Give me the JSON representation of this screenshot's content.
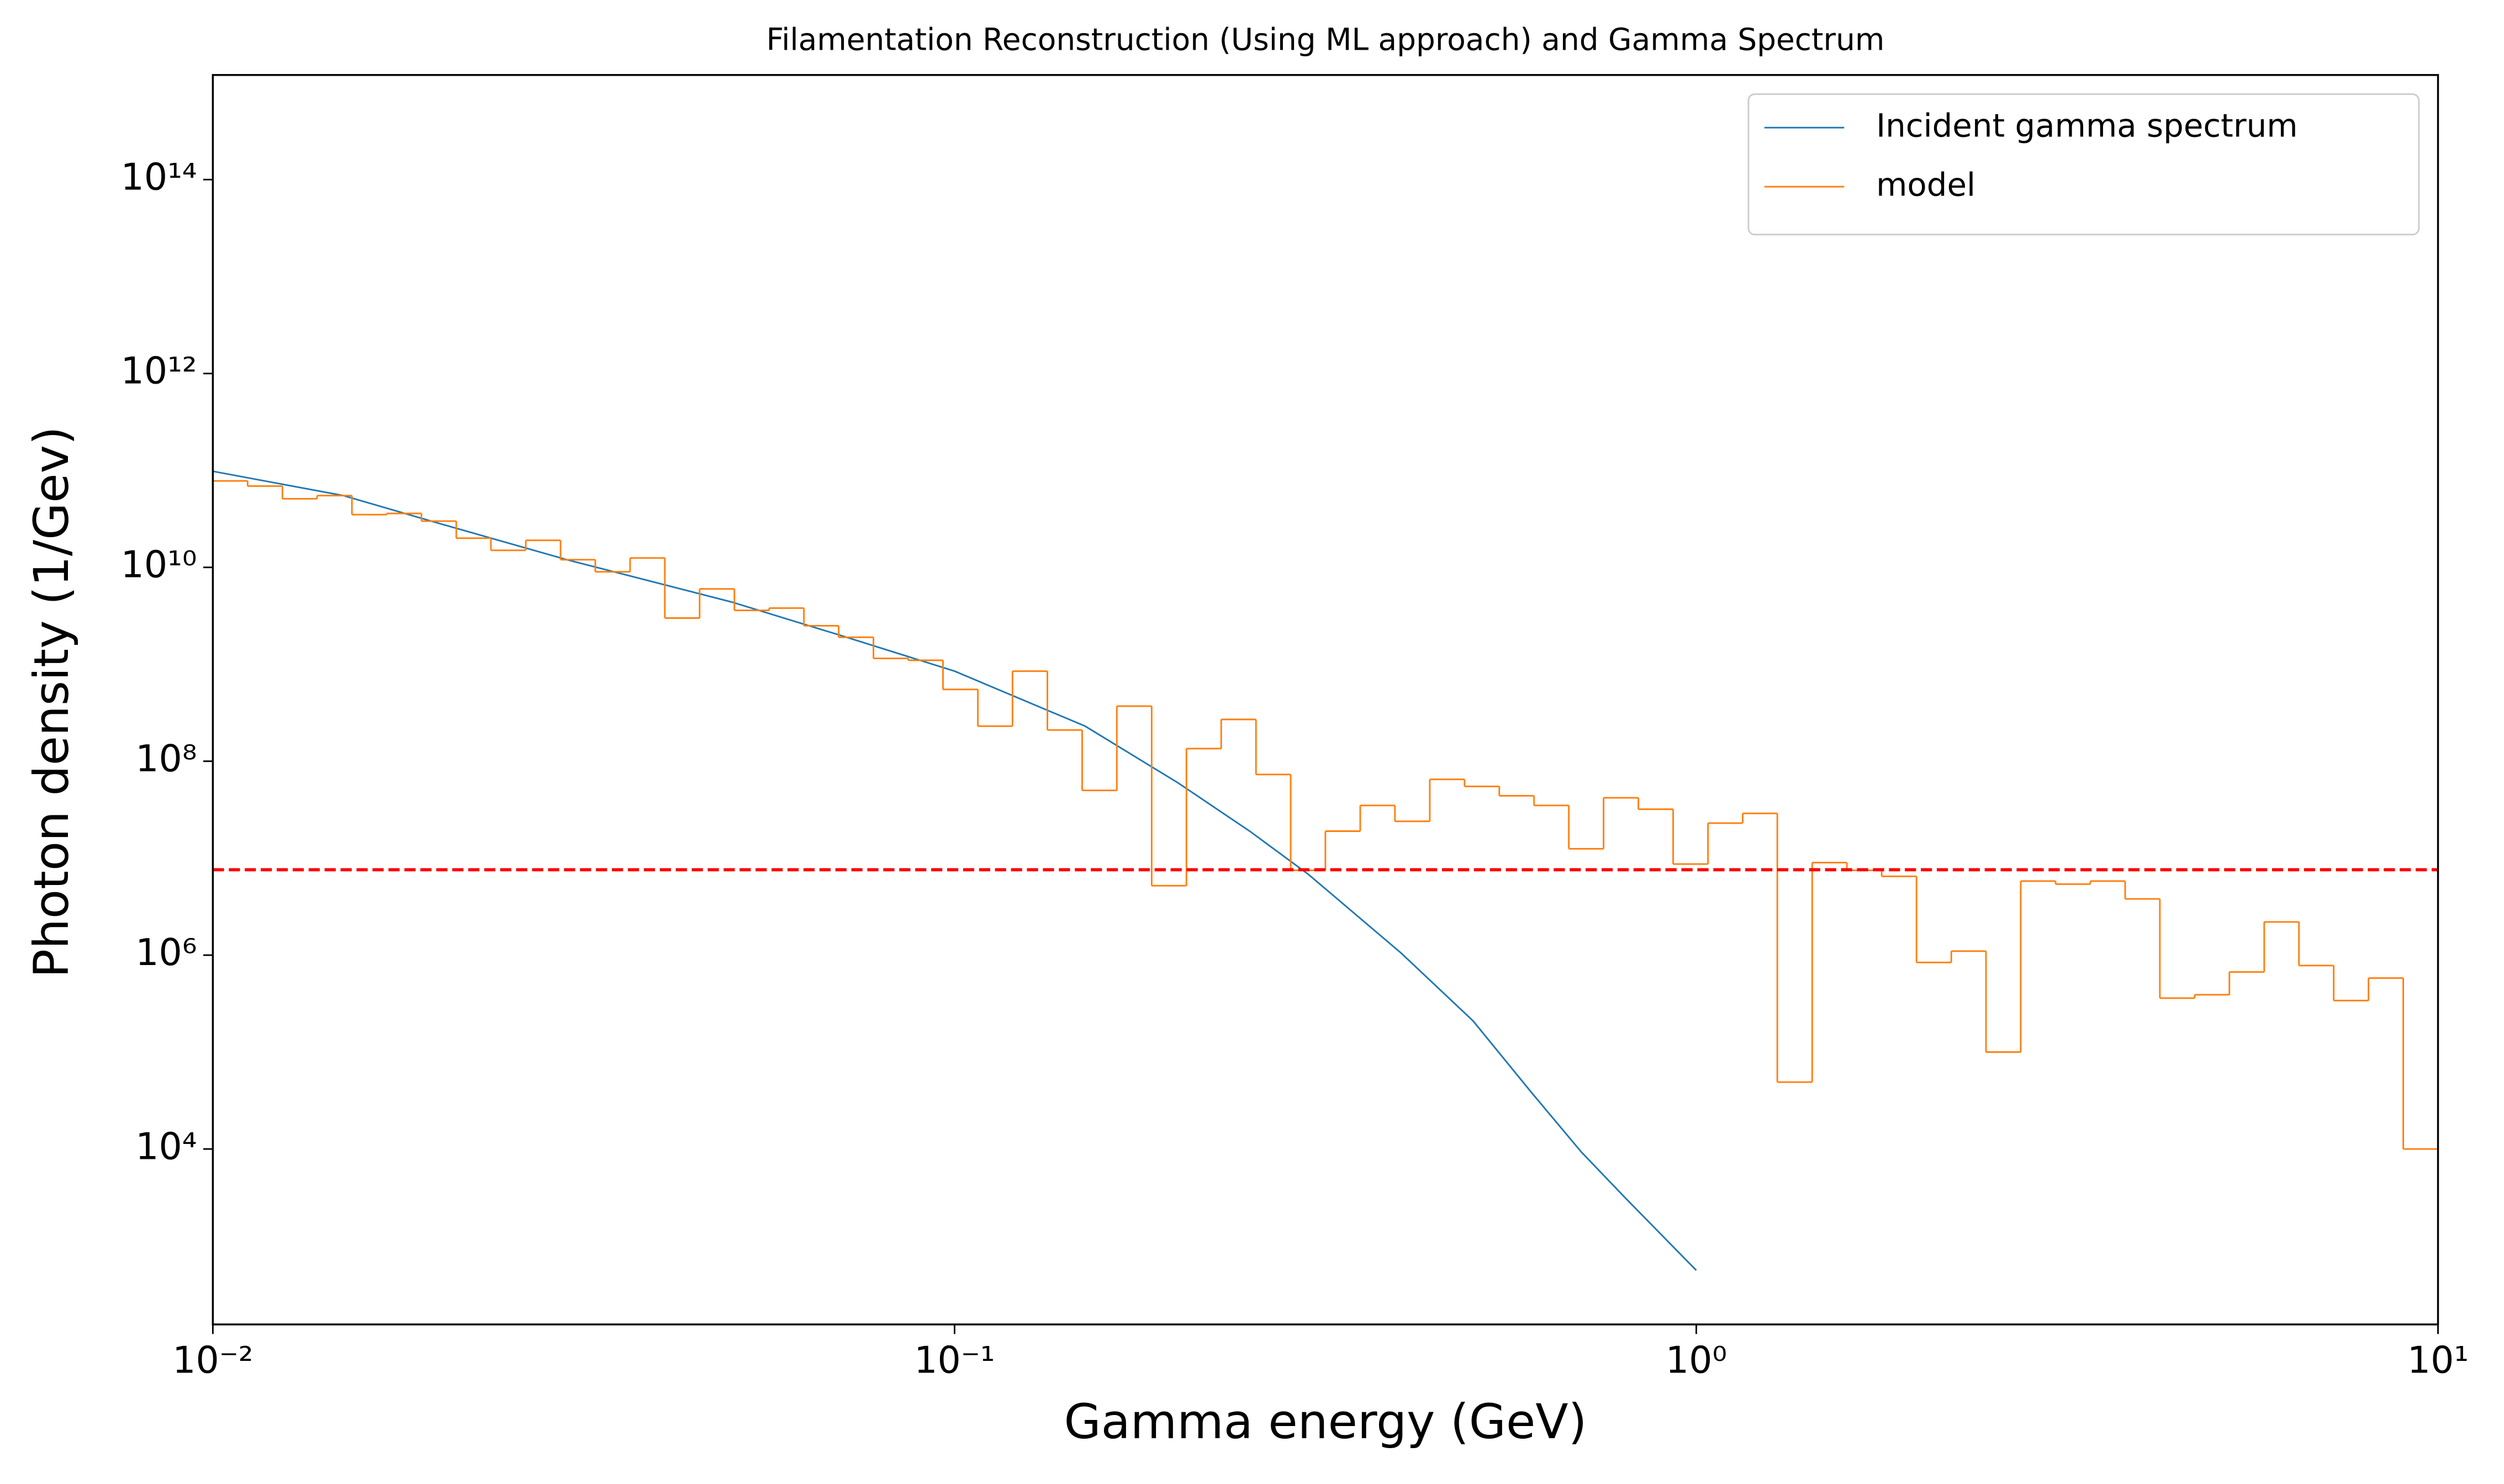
{
  "chart_data": {
    "type": "line",
    "title": "Filamentation Reconstruction (Using ML approach) and Gamma Spectrum",
    "xlabel": "Gamma energy (GeV)",
    "ylabel": "Photon density (1/Gev)",
    "xscale": "log",
    "yscale": "log",
    "xlim": [
      0.01,
      10
    ],
    "ylim": [
      155,
      1200000000000000.0
    ],
    "xticks": [
      {
        "value": 0.01,
        "label": "10⁻²"
      },
      {
        "value": 0.1,
        "label": "10⁻¹"
      },
      {
        "value": 1,
        "label": "10⁰"
      },
      {
        "value": 10,
        "label": "10¹"
      }
    ],
    "yticks": [
      {
        "value": 10000,
        "label": "10⁴"
      },
      {
        "value": 1000000,
        "label": "10⁶"
      },
      {
        "value": 100000000,
        "label": "10⁸"
      },
      {
        "value": 10000000000,
        "label": "10¹⁰"
      },
      {
        "value": 1000000000000,
        "label": "10¹²"
      },
      {
        "value": 100000000000000,
        "label": "10¹⁴"
      }
    ],
    "legend": "upper right",
    "hline": {
      "value": 7600000,
      "color": "#ff0000",
      "style": "dashed"
    },
    "series": [
      {
        "name": "Incident gamma spectrum",
        "color": "#1f77b4",
        "type": "line",
        "x": [
          0.01,
          0.015,
          0.02,
          0.03,
          0.05,
          0.07,
          0.1,
          0.15,
          0.2,
          0.25,
          0.3,
          0.4,
          0.5,
          0.6,
          0.7,
          0.8,
          1.0
        ],
        "values": [
          98000000000.0,
          55000000000.0,
          29000000000.0,
          12000000000.0,
          4400000000.0,
          2000000000.0,
          850000000.0,
          230000000.0,
          60000000.0,
          19000000.0,
          6800000.0,
          1050000.0,
          210000.0,
          38000.0,
          9300,
          3200,
          560
        ]
      },
      {
        "name": "model",
        "color": "#ff7f0e",
        "type": "step",
        "bins": [
          0.01,
          0.01114,
          0.01241,
          0.01382,
          0.0154,
          0.01716,
          0.01911,
          0.02129,
          0.02371,
          0.02642,
          0.02943,
          0.03278,
          0.03652,
          0.04068,
          0.04532,
          0.05048,
          0.05623,
          0.06264,
          0.06978,
          0.07774,
          0.0866,
          0.09647,
          0.1075,
          0.1197,
          0.1334,
          0.1486,
          0.1655,
          0.1844,
          0.2054,
          0.2288,
          0.2549,
          0.2839,
          0.3162,
          0.3523,
          0.3924,
          0.4372,
          0.487,
          0.5425,
          0.6043,
          0.6732,
          0.7499,
          0.8354,
          0.9306,
          1.037,
          1.155,
          1.286,
          1.433,
          1.596,
          1.778,
          1.981,
          2.207,
          2.458,
          2.738,
          3.051,
          3.398,
          3.786,
          4.217,
          4.698,
          5.233,
          5.83,
          6.494,
          7.234,
          8.059,
          8.977,
          10
        ],
        "values": [
          78000000000.0,
          69000000000.0,
          51000000000.0,
          55000000000.0,
          35000000000.0,
          36000000000.0,
          30000000000.0,
          20000000000.0,
          15000000000.0,
          19000000000.0,
          12000000000.0,
          9000000000.0,
          12500000000.0,
          3000000000.0,
          6000000000.0,
          3600000000.0,
          3800000000.0,
          2500000000.0,
          1900000000.0,
          1150000000.0,
          1100000000.0,
          550000000.0,
          230000000.0,
          850000000.0,
          210000000.0,
          50000000.0,
          370000000.0,
          5200000.0,
          135000000.0,
          270000000.0,
          73000000.0,
          7500000.0,
          19000000.0,
          35000000.0,
          24000000.0,
          65000000.0,
          55000000.0,
          44000000.0,
          35000000.0,
          12500000.0,
          42000000.0,
          32000000.0,
          8700000.0,
          23000000.0,
          29000000.0,
          49000.0,
          9000000.0,
          7500000.0,
          6500000.0,
          840000.0,
          1100000.0,
          100000.0,
          5800000.0,
          5400000.0,
          5800000.0,
          3800000.0,
          360000.0,
          390000.0,
          670000.0,
          2200000.0,
          780000.0,
          340000.0,
          580000.0,
          10000.0
        ]
      }
    ]
  }
}
